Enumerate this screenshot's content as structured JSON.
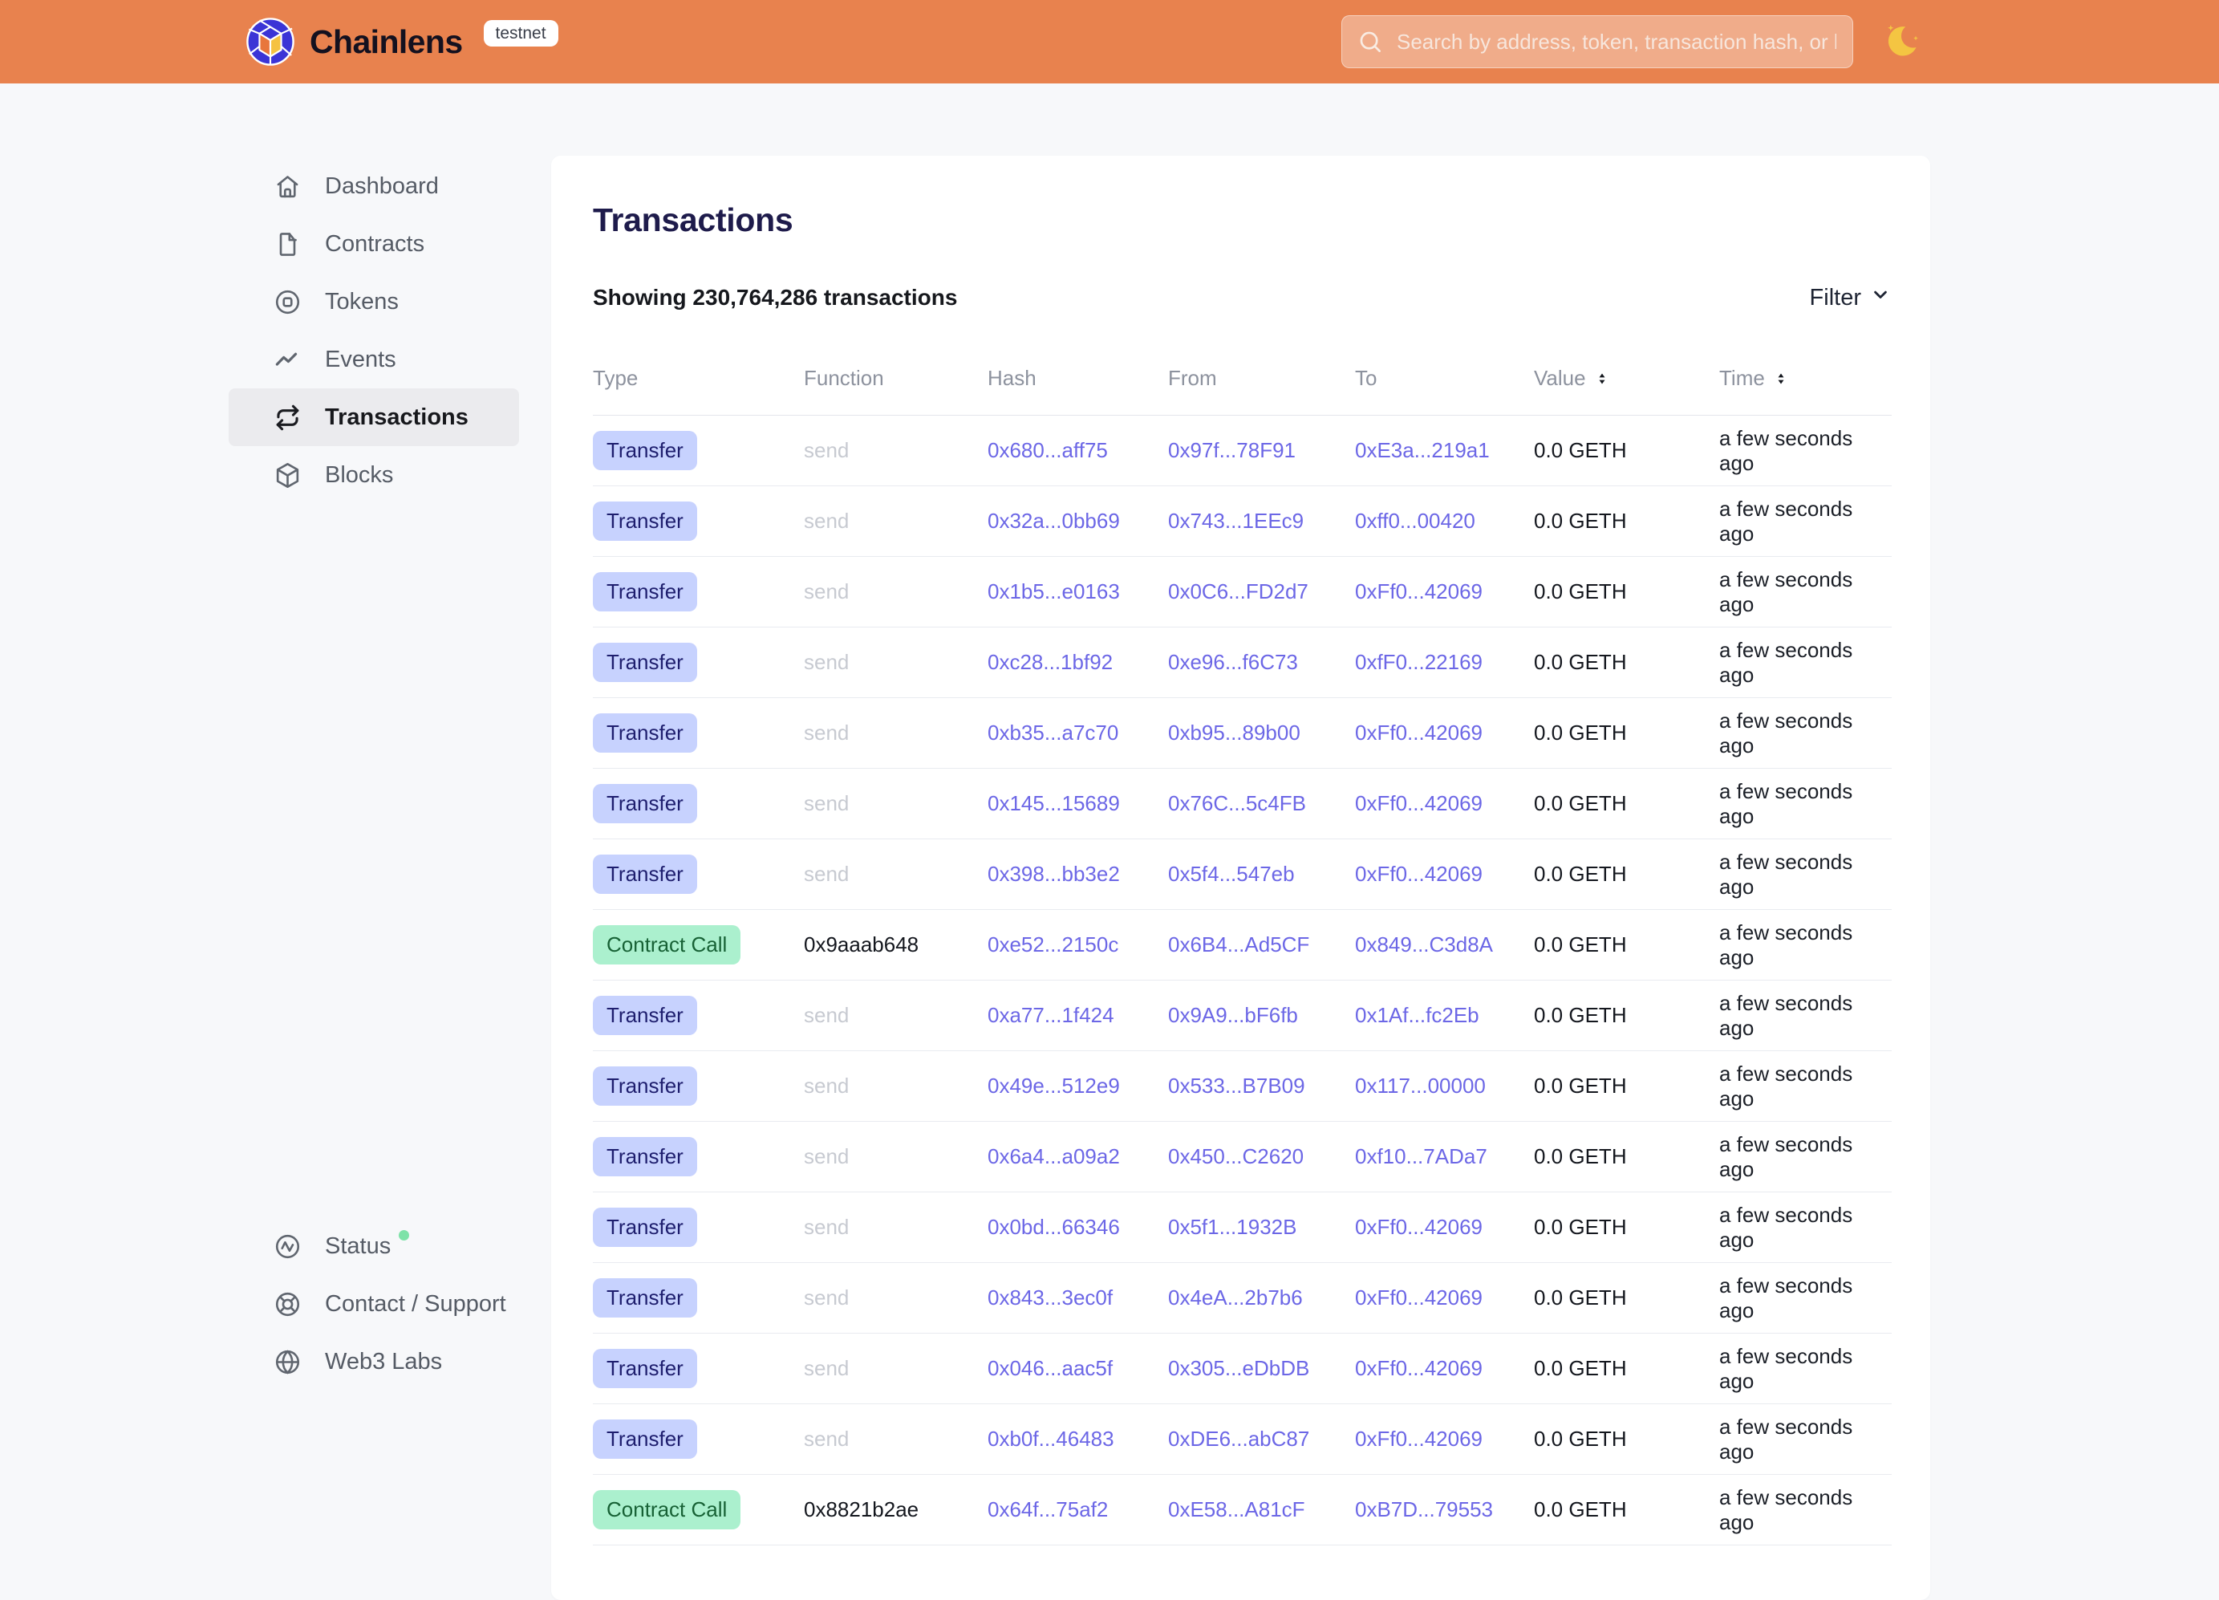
{
  "header": {
    "brand": "Chainlens",
    "badge": "testnet",
    "search_placeholder": "Search by address, token, transaction hash, or block number"
  },
  "sidebar": {
    "items": [
      {
        "label": "Dashboard",
        "icon": "home",
        "active": false
      },
      {
        "label": "Contracts",
        "icon": "document",
        "active": false
      },
      {
        "label": "Tokens",
        "icon": "token",
        "active": false
      },
      {
        "label": "Events",
        "icon": "activity",
        "active": false
      },
      {
        "label": "Transactions",
        "icon": "repeat",
        "active": true
      },
      {
        "label": "Blocks",
        "icon": "cube",
        "active": false
      }
    ],
    "footer_items": [
      {
        "label": "Status",
        "icon": "status",
        "status_dot": true
      },
      {
        "label": "Contact / Support",
        "icon": "support",
        "status_dot": false
      },
      {
        "label": "Web3 Labs",
        "icon": "globe",
        "status_dot": false
      }
    ]
  },
  "main": {
    "title": "Transactions",
    "showing_text": "Showing 230,764,286 transactions",
    "filter_label": "Filter",
    "table": {
      "columns": [
        "Type",
        "Function",
        "Hash",
        "From",
        "To",
        "Value",
        "Time"
      ],
      "sortable_columns": [
        "Value",
        "Time"
      ],
      "rows": [
        {
          "type": "Transfer",
          "function": "send",
          "function_muted": true,
          "hash": "0x680...aff75",
          "from": "0x97f...78F91",
          "to": "0xE3a...219a1",
          "value": "0.0 GETH",
          "time": "a few seconds ago"
        },
        {
          "type": "Transfer",
          "function": "send",
          "function_muted": true,
          "hash": "0x32a...0bb69",
          "from": "0x743...1EEc9",
          "to": "0xff0...00420",
          "value": "0.0 GETH",
          "time": "a few seconds ago"
        },
        {
          "type": "Transfer",
          "function": "send",
          "function_muted": true,
          "hash": "0x1b5...e0163",
          "from": "0x0C6...FD2d7",
          "to": "0xFf0...42069",
          "value": "0.0 GETH",
          "time": "a few seconds ago"
        },
        {
          "type": "Transfer",
          "function": "send",
          "function_muted": true,
          "hash": "0xc28...1bf92",
          "from": "0xe96...f6C73",
          "to": "0xfF0...22169",
          "value": "0.0 GETH",
          "time": "a few seconds ago"
        },
        {
          "type": "Transfer",
          "function": "send",
          "function_muted": true,
          "hash": "0xb35...a7c70",
          "from": "0xb95...89b00",
          "to": "0xFf0...42069",
          "value": "0.0 GETH",
          "time": "a few seconds ago"
        },
        {
          "type": "Transfer",
          "function": "send",
          "function_muted": true,
          "hash": "0x145...15689",
          "from": "0x76C...5c4FB",
          "to": "0xFf0...42069",
          "value": "0.0 GETH",
          "time": "a few seconds ago"
        },
        {
          "type": "Transfer",
          "function": "send",
          "function_muted": true,
          "hash": "0x398...bb3e2",
          "from": "0x5f4...547eb",
          "to": "0xFf0...42069",
          "value": "0.0 GETH",
          "time": "a few seconds ago"
        },
        {
          "type": "Contract Call",
          "function": "0x9aaab648",
          "function_muted": false,
          "hash": "0xe52...2150c",
          "from": "0x6B4...Ad5CF",
          "to": "0x849...C3d8A",
          "value": "0.0 GETH",
          "time": "a few seconds ago"
        },
        {
          "type": "Transfer",
          "function": "send",
          "function_muted": true,
          "hash": "0xa77...1f424",
          "from": "0x9A9...bF6fb",
          "to": "0x1Af...fc2Eb",
          "value": "0.0 GETH",
          "time": "a few seconds ago"
        },
        {
          "type": "Transfer",
          "function": "send",
          "function_muted": true,
          "hash": "0x49e...512e9",
          "from": "0x533...B7B09",
          "to": "0x117...00000",
          "value": "0.0 GETH",
          "time": "a few seconds ago"
        },
        {
          "type": "Transfer",
          "function": "send",
          "function_muted": true,
          "hash": "0x6a4...a09a2",
          "from": "0x450...C2620",
          "to": "0xf10...7ADa7",
          "value": "0.0 GETH",
          "time": "a few seconds ago"
        },
        {
          "type": "Transfer",
          "function": "send",
          "function_muted": true,
          "hash": "0x0bd...66346",
          "from": "0x5f1...1932B",
          "to": "0xFf0...42069",
          "value": "0.0 GETH",
          "time": "a few seconds ago"
        },
        {
          "type": "Transfer",
          "function": "send",
          "function_muted": true,
          "hash": "0x843...3ec0f",
          "from": "0x4eA...2b7b6",
          "to": "0xFf0...42069",
          "value": "0.0 GETH",
          "time": "a few seconds ago"
        },
        {
          "type": "Transfer",
          "function": "send",
          "function_muted": true,
          "hash": "0x046...aac5f",
          "from": "0x305...eDbDB",
          "to": "0xFf0...42069",
          "value": "0.0 GETH",
          "time": "a few seconds ago"
        },
        {
          "type": "Transfer",
          "function": "send",
          "function_muted": true,
          "hash": "0xb0f...46483",
          "from": "0xDE6...abC87",
          "to": "0xFf0...42069",
          "value": "0.0 GETH",
          "time": "a few seconds ago"
        },
        {
          "type": "Contract Call",
          "function": "0x8821b2ae",
          "function_muted": false,
          "hash": "0x64f...75af2",
          "from": "0xE58...A81cF",
          "to": "0xB7D...79553",
          "value": "0.0 GETH",
          "time": "a few seconds ago"
        }
      ]
    }
  },
  "colors": {
    "header_bg": "#E8824E",
    "link": "#6C67E6",
    "title_text": "#1E1B4B",
    "badge_transfer_bg": "#C7D2FE",
    "badge_transfer_text": "#1E1E6E",
    "badge_contract_bg": "#ABF0CE",
    "badge_contract_text": "#176135",
    "status_dot": "#7EE2A8"
  }
}
